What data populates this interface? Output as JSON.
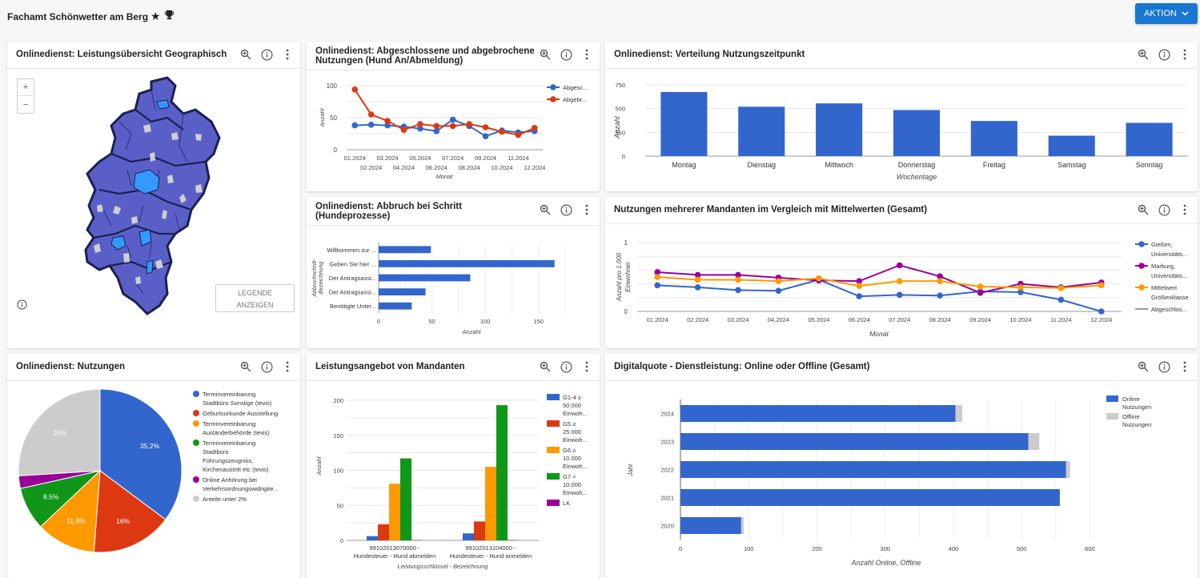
{
  "header": {
    "title": "Fachamt Schönwetter am Berg",
    "icons": [
      "star-icon",
      "trophy-icon"
    ],
    "action_button": "AKTION"
  },
  "colors": {
    "accent": "#1976d2",
    "blue": "#3366cc",
    "red": "#dc3912",
    "orange": "#ff9900",
    "green": "#109618",
    "purple": "#990099",
    "gray": "#cccccc",
    "map_fill": "#5a5fc8",
    "map_highlight": "#3399ff"
  },
  "panels": {
    "map": {
      "title": "Onlinedienst: Leistungsübersicht Geographisch",
      "zoom_in": "+",
      "zoom_out": "−",
      "legend_button_line1": "LEGENDE",
      "legend_button_line2": "ANZEIGEN"
    },
    "line1": {
      "title_line1": "Onlinedienst: Abgeschlossene und abgebrochene",
      "title_line2": "Nutzungen (Hund An/Abmeldung)"
    },
    "weekday": {
      "title": "Onlinedienst: Verteilung Nutzungszeitpunkt"
    },
    "abbruch": {
      "title_line1": "Onlinedienst: Abbruch bei Schritt",
      "title_line2": "(Hundeprozesse)"
    },
    "mandanten": {
      "title": "Nutzungen mehrerer Mandanten im Vergleich mit Mittelwerten (Gesamt)"
    },
    "pie": {
      "title": "Onlinedienst: Nutzungen"
    },
    "leistung": {
      "title": "Leistungsangebot von Mandanten"
    },
    "digital": {
      "title": "Digitalquote - Dienstleistung: Online oder Offline (Gesamt)"
    }
  },
  "chart_data": [
    {
      "id": "line1",
      "type": "line",
      "title": "Onlinedienst: Abgeschlossene und abgebrochene Nutzungen (Hund An/Abmeldung)",
      "xlabel": "Monat",
      "ylabel": "Anzahl",
      "ylim": [
        0,
        100
      ],
      "yticks": [
        "0",
        "50",
        "100"
      ],
      "categories": [
        "01.2024",
        "02.2024",
        "03.2024",
        "04.2024",
        "05.2024",
        "06.2024",
        "07.2024",
        "08.2024",
        "09.2024",
        "10.2024",
        "11.2024",
        "12.2024"
      ],
      "series": [
        {
          "name": "Abgesc...",
          "color": "#3366cc",
          "values": [
            38,
            39,
            38,
            36,
            33,
            29,
            47,
            37,
            21,
            30,
            27,
            29
          ]
        },
        {
          "name": "Abgebr...",
          "color": "#dc3912",
          "values": [
            94,
            55,
            45,
            31,
            40,
            37,
            37,
            40,
            35,
            28,
            23,
            34
          ]
        }
      ],
      "legend": "right"
    },
    {
      "id": "weekday",
      "type": "bar",
      "title": "Onlinedienst: Verteilung Nutzungszeitpunkt",
      "xlabel": "Wochentage",
      "ylabel": "Anzahl",
      "ylim": [
        0,
        750
      ],
      "yticks": [
        "0",
        "250",
        "500",
        "750"
      ],
      "categories": [
        "Montag",
        "Dienstag",
        "Mittwoch",
        "Donnerstag",
        "Freitag",
        "Samstag",
        "Sonntag"
      ],
      "values": [
        675,
        520,
        555,
        485,
        370,
        215,
        350
      ]
    },
    {
      "id": "abbruch",
      "type": "bar",
      "orientation": "horizontal",
      "title": "Onlinedienst: Abbruch bei Schritt (Hundeprozesse)",
      "xlabel": "Anzahl",
      "ylabel": "Abbruchschritt-Bezeichnung",
      "xlim": [
        0,
        175
      ],
      "xticks": [
        "0",
        "50",
        "100",
        "150"
      ],
      "categories": [
        "Willkommen zur ...",
        "Geben Sie hier ...",
        "Der Antragsassi...",
        "Der Antragsassi...",
        "Benötigte Unter..."
      ],
      "values": [
        49,
        165,
        86,
        44,
        31
      ]
    },
    {
      "id": "mandanten",
      "type": "line",
      "title": "Nutzungen mehrerer Mandanten im Vergleich mit Mittelwerten (Gesamt)",
      "xlabel": "Monat",
      "ylabel": "Anzahl pro 1.000 Einwohner",
      "ylim": [
        0,
        1
      ],
      "yticks": [
        "0",
        "1"
      ],
      "categories": [
        "01.2024",
        "02.2024",
        "03.2024",
        "04.2024",
        "05.2024",
        "06.2024",
        "07.2024",
        "08.2024",
        "09.2024",
        "10.2024",
        "11.2024",
        "12.2024"
      ],
      "series": [
        {
          "name": "Gießen, Universitäts...",
          "color": "#3366cc",
          "values": [
            0.38,
            0.35,
            0.31,
            0.3,
            0.46,
            0.22,
            0.24,
            0.23,
            0.29,
            0.28,
            0.17,
            0.0
          ]
        },
        {
          "name": "Marburg, Universitäts...",
          "color": "#990099",
          "values": [
            0.57,
            0.53,
            0.53,
            0.49,
            0.45,
            0.44,
            0.67,
            0.51,
            0.27,
            0.4,
            0.35,
            0.42
          ]
        },
        {
          "name": "Mittelwert Größenklasse",
          "color": "#ff9900",
          "values": [
            0.5,
            0.46,
            0.46,
            0.44,
            0.48,
            0.37,
            0.44,
            0.44,
            0.36,
            0.35,
            0.34,
            0.38
          ]
        },
        {
          "name": "Abgeschlos...",
          "color": "#999999",
          "values": []
        }
      ],
      "legend": "right"
    },
    {
      "id": "pie",
      "type": "pie",
      "title": "Onlinedienst: Nutzungen",
      "slices": [
        {
          "label": "Terminvereinbarung Stadtbüro Sonstige (tevis)",
          "value": 35.2,
          "display": "35,2%",
          "color": "#3366cc"
        },
        {
          "label": "Geburtsurkunde Ausstellung",
          "value": 16.0,
          "display": "16%",
          "color": "#dc3912"
        },
        {
          "label": "Terminvereinbarung Ausländerbehörde (tevis)",
          "value": 11.8,
          "display": "11,8%",
          "color": "#ff9900"
        },
        {
          "label": "Terminvereinbarung Stadtbüro Führungszeugniss, Kirchenaustritt etc (tevis)",
          "value": 8.5,
          "display": "8,5%",
          "color": "#109618"
        },
        {
          "label": "Online Anhörung bei Verkehrsordnungswidrigke...",
          "value": 2.5,
          "display": "",
          "color": "#990099"
        },
        {
          "label": "Anteile unter 2%",
          "value": 26.0,
          "display": "26%",
          "color": "#cccccc"
        }
      ],
      "legend_lines": [
        [
          "Terminvereinbarung",
          "Stadtbüro Sonstige (tevis)"
        ],
        [
          "Geburtsurkunde Ausstellung"
        ],
        [
          "Terminvereinbarung",
          "Ausländerbehörde (tevis)"
        ],
        [
          "Terminvereinbarung",
          "Stadtbüro",
          "Führungszeugniss,",
          "Kirchenaustritt etc (tevis)"
        ],
        [
          "Online Anhörung bei",
          "Verkehrsordnungswidrigke..."
        ],
        [
          "Anteile unter 2%"
        ]
      ],
      "legend": "right"
    },
    {
      "id": "leistung",
      "type": "bar",
      "title": "Leistungsangebot von Mandanten",
      "xlabel": "Leistungsschlüssel - Bezeichnung",
      "ylabel": "Anzahl",
      "ylim": [
        0,
        200
      ],
      "yticks": [
        "0",
        "50",
        "100",
        "150",
        "200"
      ],
      "categories": [
        [
          "99102013070000 -",
          "Hundesteuer - Hund abmelden"
        ],
        [
          "99102013104000 -",
          "Hundesteuer - Hund anmelden"
        ]
      ],
      "series": [
        {
          "name": "G1-4 ≥ 50.000 Einwoh...",
          "legend_lines": [
            "G1-4 ≥",
            "50.000",
            "Einwoh..."
          ],
          "color": "#3366cc",
          "values": [
            6,
            10
          ]
        },
        {
          "name": "G5 ≥ 25.000 Einwoh...",
          "legend_lines": [
            "G5 ≥",
            "25.000",
            "Einwoh..."
          ],
          "color": "#dc3912",
          "values": [
            23,
            27
          ]
        },
        {
          "name": "G6 ≥ 10.000 Einwoh...",
          "legend_lines": [
            "G6 ≥",
            "10.000",
            "Einwoh..."
          ],
          "color": "#ff9900",
          "values": [
            81,
            105
          ]
        },
        {
          "name": "G7 < 10.000 Einwoh...",
          "legend_lines": [
            "G7 <",
            "10.000",
            "Einwoh..."
          ],
          "color": "#109618",
          "values": [
            117,
            193
          ]
        },
        {
          "name": "LK",
          "legend_lines": [
            "LK"
          ],
          "color": "#990099",
          "values": [
            0.5,
            0.5
          ]
        }
      ],
      "legend": "right"
    },
    {
      "id": "digital",
      "type": "bar",
      "orientation": "horizontal",
      "stacked": true,
      "title": "Digitalquote - Dienstleistung: Online oder Offline (Gesamt)",
      "xlabel": "Anzahl Online, Offline",
      "ylabel": "Jahr",
      "xlim": [
        0,
        650
      ],
      "xticks": [
        "0",
        "100",
        "200",
        "300",
        "400",
        "500",
        "600"
      ],
      "categories": [
        "2024",
        "2023",
        "2022",
        "2021",
        "2020"
      ],
      "series": [
        {
          "name": "Online Nutzungen",
          "legend_lines": [
            "Online",
            "Nutzungen"
          ],
          "color": "#3366cc",
          "values": [
            403,
            510,
            565,
            556,
            89
          ]
        },
        {
          "name": "Offline Nutzungen",
          "legend_lines": [
            "Offline",
            "Nutzungen"
          ],
          "color": "#cccccc",
          "values": [
            10,
            16,
            6,
            0,
            4
          ]
        }
      ],
      "legend": "top-right"
    }
  ]
}
